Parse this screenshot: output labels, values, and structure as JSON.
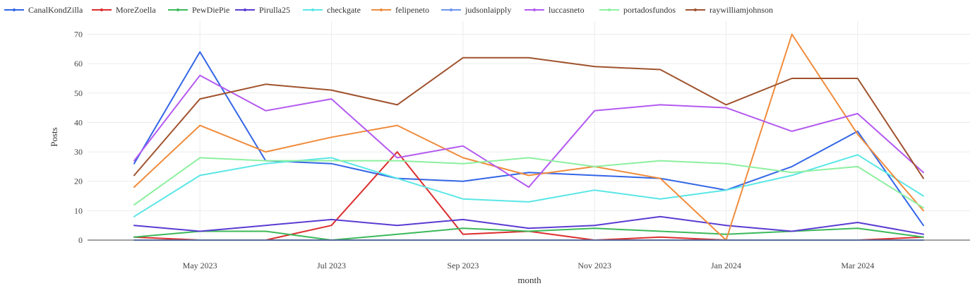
{
  "chart_data": {
    "type": "line",
    "xlabel": "month",
    "ylabel": "Posts",
    "ylim": [
      0,
      70
    ],
    "yticks": [
      0,
      10,
      20,
      30,
      40,
      50,
      60,
      70
    ],
    "grid": true,
    "legend_position": "top",
    "x": [
      "2023-04",
      "2023-05",
      "2023-06",
      "2023-07",
      "2023-08",
      "2023-09",
      "2023-10",
      "2023-11",
      "2023-12",
      "2024-01",
      "2024-02",
      "2024-03",
      "2024-04"
    ],
    "xtick_labels": [
      {
        "x": "2023-05",
        "label": "May 2023"
      },
      {
        "x": "2023-07",
        "label": "Jul 2023"
      },
      {
        "x": "2023-09",
        "label": "Sep 2023"
      },
      {
        "x": "2023-11",
        "label": "Nov 2023"
      },
      {
        "x": "2024-01",
        "label": "Jan 2024"
      },
      {
        "x": "2024-03",
        "label": "Mar 2024"
      }
    ],
    "series": [
      {
        "name": "CanalKondZilla",
        "color": "#3366e6",
        "values": [
          26,
          64,
          27,
          26,
          21,
          20,
          23,
          22,
          21,
          17,
          25,
          37,
          5
        ]
      },
      {
        "name": "MoreZoella",
        "color": "#dc2e2e",
        "values": [
          1,
          0,
          0,
          5,
          30,
          2,
          3,
          0,
          1,
          0,
          0,
          0,
          1
        ]
      },
      {
        "name": "PewDiePie",
        "color": "#3cb95a",
        "values": [
          1,
          3,
          3,
          0,
          2,
          4,
          3,
          4,
          3,
          2,
          3,
          4,
          1
        ]
      },
      {
        "name": "Pirulla25",
        "color": "#5a3cd2",
        "values": [
          5,
          3,
          5,
          7,
          5,
          7,
          4,
          5,
          8,
          5,
          3,
          6,
          2
        ]
      },
      {
        "name": "checkgate",
        "color": "#5ae6e6",
        "values": [
          8,
          22,
          26,
          28,
          21,
          14,
          13,
          17,
          14,
          17,
          22,
          29,
          15
        ]
      },
      {
        "name": "felipeneto",
        "color": "#f08c3c",
        "values": [
          18,
          39,
          30,
          35,
          39,
          28,
          22,
          25,
          21,
          0,
          70,
          36,
          10
        ]
      },
      {
        "name": "judsonlaipply",
        "color": "#6e96f0",
        "values": [
          0,
          0,
          0,
          0,
          0,
          0,
          0,
          0,
          0,
          0,
          0,
          0,
          0
        ]
      },
      {
        "name": "luccasneto",
        "color": "#b45af0",
        "values": [
          27,
          56,
          44,
          48,
          28,
          32,
          18,
          44,
          46,
          45,
          37,
          43,
          23
        ]
      },
      {
        "name": "portadosfundos",
        "color": "#8cf0a0",
        "values": [
          12,
          28,
          27,
          27,
          27,
          26,
          28,
          25,
          27,
          26,
          23,
          25,
          11
        ]
      },
      {
        "name": "raywilliamjohnson",
        "color": "#a0522d",
        "values": [
          22,
          48,
          53,
          51,
          46,
          62,
          62,
          59,
          58,
          46,
          55,
          55,
          21
        ]
      }
    ]
  }
}
